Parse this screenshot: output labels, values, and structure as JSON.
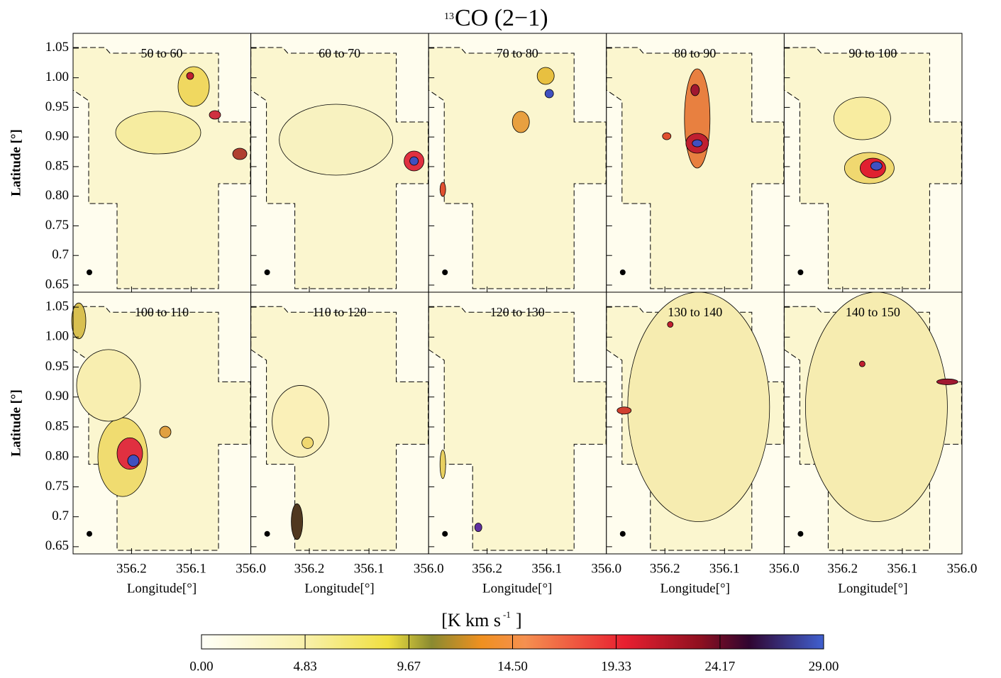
{
  "chart_data": {
    "type": "channel-maps",
    "title_superscript": "13",
    "title": "CO (2−1)",
    "panels": [
      "50 to 60",
      "60 to 70",
      "70 to 80",
      "80 to 90",
      "90 to 100",
      "100 to 110",
      "110 to 120",
      "120 to 130",
      "130 to 140",
      "140 to 150"
    ],
    "ylabel": "Latitude [°]",
    "xlabel": "Longitude[°]",
    "xlim": [
      356.298,
      356.0
    ],
    "xticks": [
      356.2,
      356.1,
      {
        "value": 356.0,
        "label": "356.0"
      }
    ],
    "ylim": [
      0.638,
      1.075
    ],
    "yticks": [
      0.65,
      0.7,
      0.75,
      {
        "value": 0.8,
        "label": "0.80"
      },
      0.85,
      {
        "value": 0.9,
        "label": "0.90"
      },
      0.95,
      {
        "value": 1.0,
        "label": "1.00"
      },
      1.05
    ],
    "colorbar": {
      "label": "[K km s",
      "label_superscript": "-1",
      "label_end": "]",
      "lim": [
        0,
        29
      ],
      "ticks": [
        {
          "value": 0,
          "label": "0.00"
        },
        4.83,
        9.67,
        {
          "value": 14.5,
          "label": "14.50"
        },
        19.33,
        24.17,
        {
          "value": 29,
          "label": "29.00"
        }
      ]
    }
  }
}
